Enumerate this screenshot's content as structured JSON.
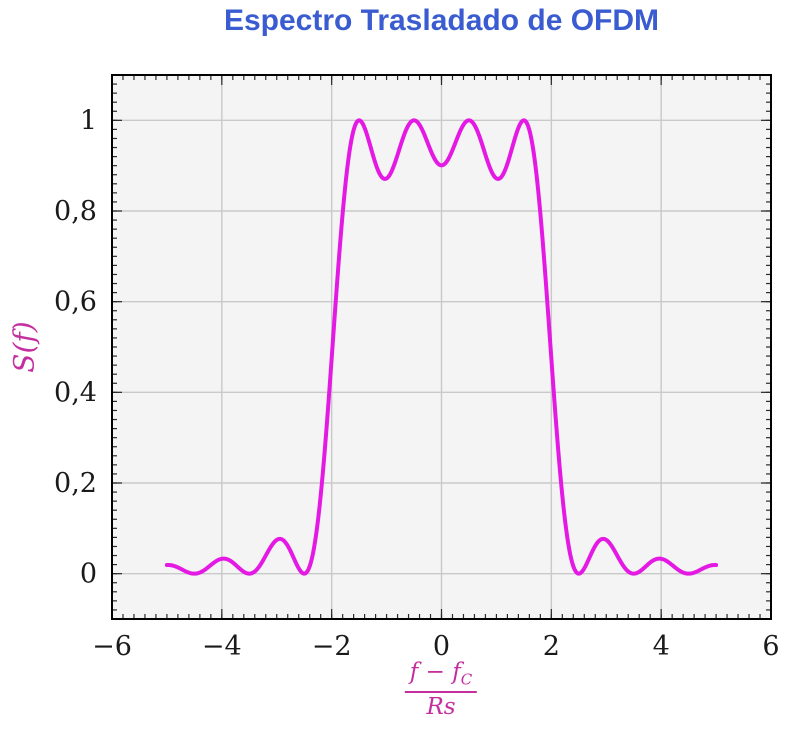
{
  "title": {
    "text": "Espectro Trasladado de OFDM",
    "color": "#3a5cd0"
  },
  "axes": {
    "y_label": "S(f)",
    "x_label": {
      "numerator": "f − f",
      "numerator_sub": "C",
      "denominator": "Rs"
    },
    "label_color": "#c42f9f"
  },
  "chart_data": {
    "type": "line",
    "title": "Espectro Trasladado de OFDM",
    "xlabel": "(f − f_C)/Rs",
    "ylabel": "S(f)",
    "xlim": [
      -6,
      6
    ],
    "ylim": [
      -0.1,
      1.1
    ],
    "grid": true,
    "legend": "none",
    "x_major_ticks": {
      "values": [
        -6,
        -4,
        -2,
        0,
        2,
        4,
        6
      ],
      "labels": [
        "−6",
        "−4",
        "−2",
        "0",
        "2",
        "4",
        "6"
      ]
    },
    "y_major_ticks": {
      "values": [
        0,
        0.2,
        0.4,
        0.6,
        0.8,
        1
      ],
      "labels": [
        "0",
        "0,2",
        "0,4",
        "0,6",
        "0,8",
        "1"
      ]
    },
    "x_minor_step": 0.2,
    "y_minor_step": 0.02,
    "plot_bg": "#f4f4f4",
    "grid_color": "#c9c9c9",
    "frame_color": "#000000",
    "tick_color": "#2a2a2a",
    "series": [
      {
        "name": "S(f)",
        "color": "#e41ae4",
        "line_width": 4,
        "x_range": [
          -5,
          5
        ],
        "sample_step": 0.02,
        "formula": "S(f) = sum over k of sinc^2(x - k), sinc(t) = sin(pi*t)/(pi*t)",
        "subcarriers": [
          -1.5,
          -0.5,
          0.5,
          1.5
        ],
        "key_points": [
          {
            "x": -5.0,
            "y": 0.019
          },
          {
            "x": -4.5,
            "y": 0.0
          },
          {
            "x": -4.0,
            "y": 0.033
          },
          {
            "x": -3.5,
            "y": 0.0
          },
          {
            "x": -3.0,
            "y": 0.074
          },
          {
            "x": -2.5,
            "y": 0.0
          },
          {
            "x": -2.0,
            "y": 0.475
          },
          {
            "x": -1.5,
            "y": 1.0
          },
          {
            "x": -1.0,
            "y": 0.872
          },
          {
            "x": -0.5,
            "y": 1.0
          },
          {
            "x": 0.0,
            "y": 0.901
          },
          {
            "x": 0.5,
            "y": 1.0
          },
          {
            "x": 1.0,
            "y": 0.872
          },
          {
            "x": 1.5,
            "y": 1.0
          },
          {
            "x": 2.0,
            "y": 0.475
          },
          {
            "x": 2.5,
            "y": 0.0
          },
          {
            "x": 3.0,
            "y": 0.074
          },
          {
            "x": 3.5,
            "y": 0.0
          },
          {
            "x": 4.0,
            "y": 0.033
          },
          {
            "x": 4.5,
            "y": 0.0
          },
          {
            "x": 5.0,
            "y": 0.019
          }
        ]
      }
    ]
  }
}
